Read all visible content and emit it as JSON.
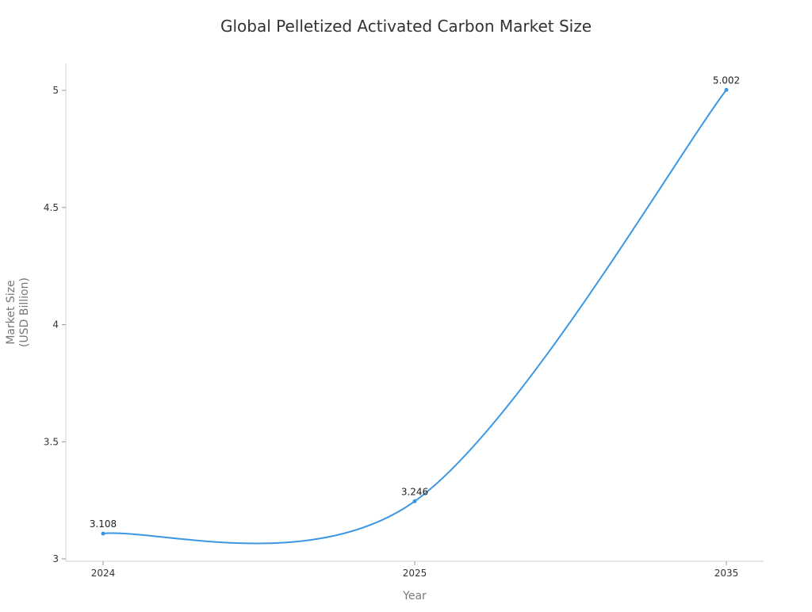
{
  "chart_data": {
    "type": "line",
    "title": "Global Pelletized Activated Carbon Market Size",
    "xlabel": "Year",
    "ylabel_lines": [
      "Market Size",
      "(USD Billion)"
    ],
    "categories": [
      "2024",
      "2025",
      "2035"
    ],
    "series": [
      {
        "name": "Market Size",
        "values": [
          3.108,
          3.246,
          5.002
        ]
      }
    ],
    "data_labels": [
      "3.108",
      "3.246",
      "5.002"
    ],
    "yticks": [
      3,
      3.5,
      4,
      4.5,
      5
    ],
    "ytick_labels": [
      "3",
      "3.5",
      "4",
      "4.5",
      "5"
    ],
    "ylim": [
      3,
      5
    ],
    "grid": false,
    "line_color": "#3b97e3"
  }
}
